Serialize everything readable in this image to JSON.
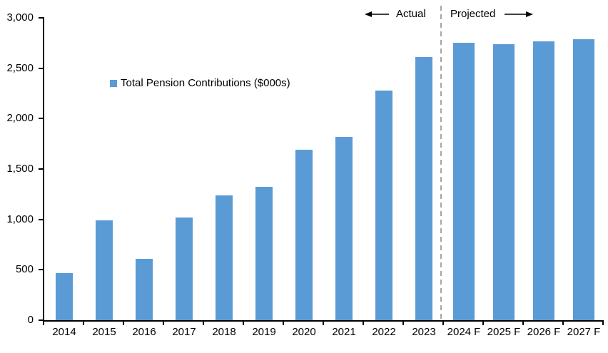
{
  "chart_data": {
    "type": "bar",
    "title": "",
    "legend": {
      "label": "Total Pension Contributions ($000s)",
      "swatch_color": "#5B9BD5"
    },
    "categories": [
      "2014",
      "2015",
      "2016",
      "2017",
      "2018",
      "2019",
      "2020",
      "2021",
      "2022",
      "2023",
      "2024 F",
      "2025 F",
      "2026 F",
      "2027 F"
    ],
    "values": [
      470,
      990,
      610,
      1020,
      1240,
      1320,
      1690,
      1820,
      2280,
      2610,
      2750,
      2740,
      2770,
      2790
    ],
    "xlabel": "",
    "ylabel": "",
    "ylim": [
      0,
      3000
    ],
    "ytick_labels": [
      "0",
      "500",
      "1,000",
      "1,500",
      "2,000",
      "2,500",
      "3,000"
    ],
    "grid": false,
    "legend_position": "inside-upper-left",
    "bar_color": "#5B9BD5",
    "axis_color": "#000000",
    "divider": {
      "after_index": 9,
      "color": "#A6A6A6",
      "style": "dashed"
    },
    "annotations": {
      "actual_label": "Actual",
      "projected_label": "Projected"
    }
  }
}
